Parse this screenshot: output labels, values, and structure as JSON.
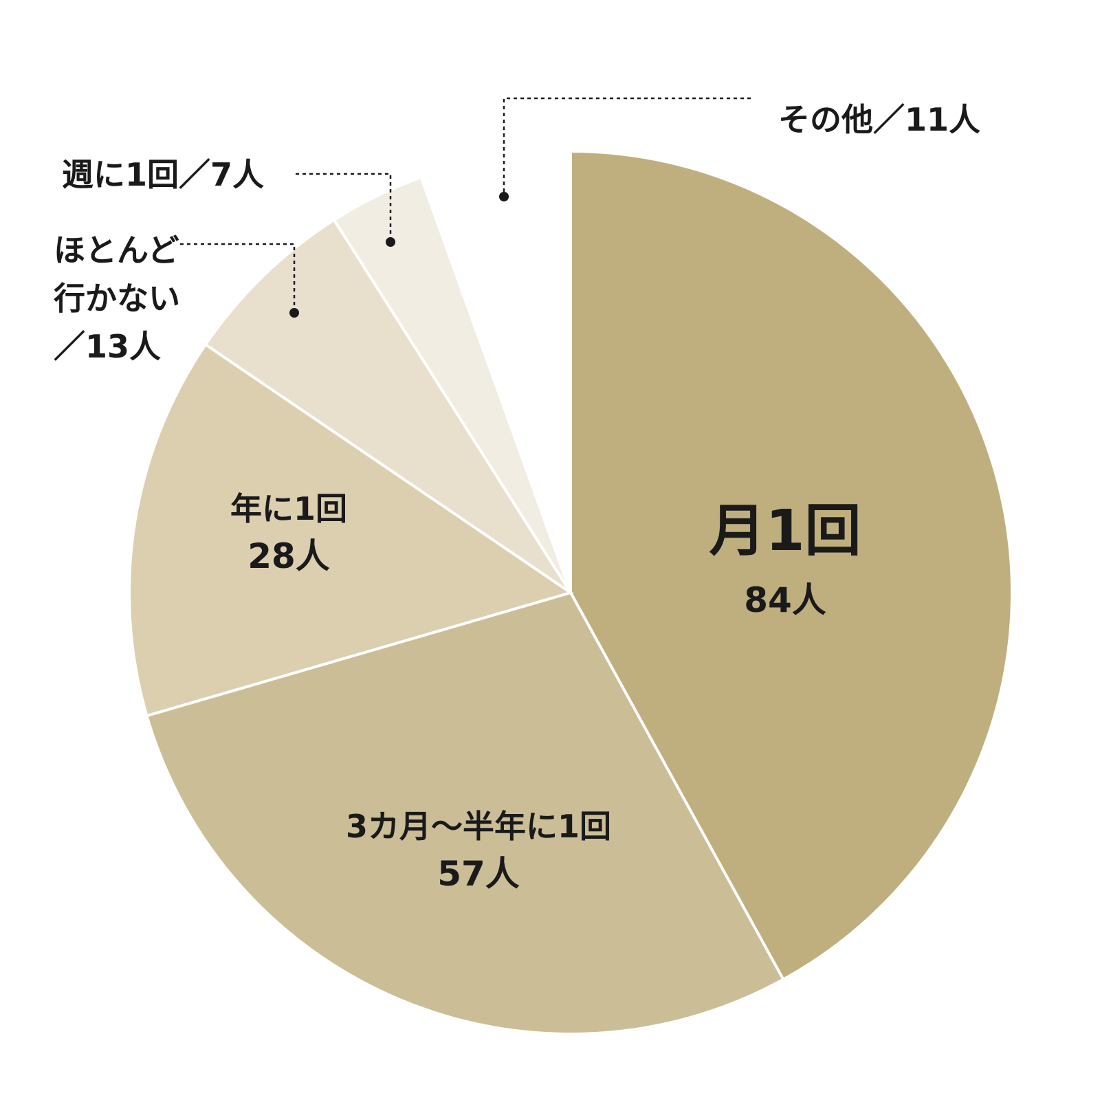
{
  "chart_data": {
    "type": "pie",
    "start_angle_deg": 0,
    "direction": "clockwise",
    "slices": [
      {
        "label": "月1回",
        "value": 84,
        "value_label": "84人",
        "color": "#c0af7e"
      },
      {
        "label": "3カ月〜半年に1回",
        "value": 57,
        "value_label": "57人",
        "color": "#cbbe97"
      },
      {
        "label": "年に1回",
        "value": 28,
        "value_label": "28人",
        "color": "#dbcfb0"
      },
      {
        "label": "ほとんど行かない",
        "label_lines": [
          "ほとんど",
          "行かない",
          "／13人"
        ],
        "value": 13,
        "color": "#e8e0cc"
      },
      {
        "label": "週に1回",
        "label_text": "週に1回／7人",
        "value": 7,
        "color": "#f1ede2"
      },
      {
        "label": "その他",
        "label_text": "その他／11人",
        "value": 11,
        "color": "#ffffff"
      }
    ]
  }
}
